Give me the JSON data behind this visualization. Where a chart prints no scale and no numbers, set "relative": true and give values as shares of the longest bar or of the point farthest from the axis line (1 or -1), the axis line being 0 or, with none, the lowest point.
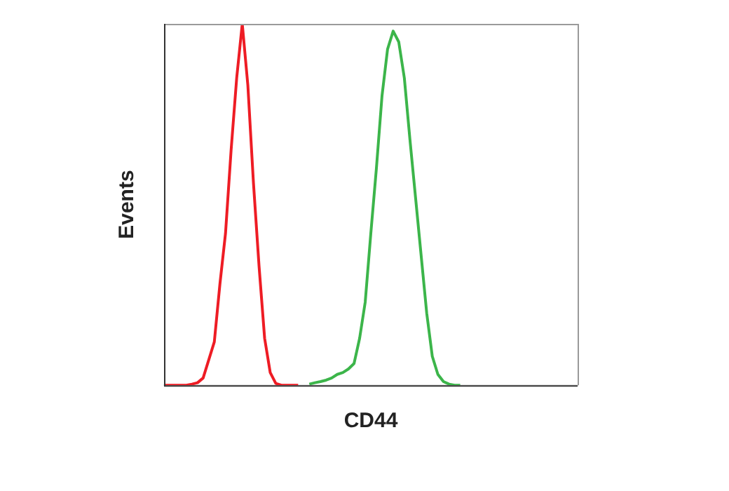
{
  "chart_data": {
    "type": "line",
    "xlabel": "CD44",
    "ylabel": "Events",
    "relative": true,
    "legend": false,
    "marker": "none",
    "categories": [
      null,
      null,
      null,
      null,
      null,
      null,
      null,
      null,
      null,
      null,
      null,
      null,
      null,
      null,
      null,
      null,
      null,
      null,
      null,
      null,
      null,
      null,
      null,
      null,
      null,
      null,
      null,
      null,
      null,
      null,
      null,
      null,
      null,
      null,
      null,
      null,
      null,
      null,
      null,
      null,
      null,
      null,
      null,
      null,
      null,
      null,
      null,
      null,
      null,
      null,
      null,
      null,
      null,
      null,
      null,
      null,
      null,
      null,
      null,
      null,
      null,
      null,
      null,
      null,
      null,
      null,
      null,
      null,
      null,
      null,
      null,
      null,
      null,
      null,
      null
    ],
    "series": [
      {
        "color": "#ee1c24",
        "values": [
          0,
          0,
          0,
          0,
          0,
          0.003,
          0.007,
          0.02,
          0.07,
          0.12,
          0.28,
          0.42,
          0.65,
          0.85,
          1.0,
          0.83,
          0.56,
          0.33,
          0.13,
          0.035,
          0.005,
          0,
          0,
          0,
          0,
          null,
          null,
          null,
          null,
          null,
          null,
          null,
          null,
          null,
          null,
          null,
          null,
          null,
          null,
          null,
          null,
          null,
          null,
          null,
          null,
          null,
          null,
          null,
          null,
          null,
          null,
          null,
          null,
          null,
          null,
          null,
          null,
          null,
          null,
          null,
          null,
          null,
          null,
          null,
          null,
          null,
          null,
          null,
          null,
          null,
          null,
          null,
          null,
          null,
          null
        ]
      },
      {
        "color": "#3cb54a",
        "values": [
          null,
          null,
          null,
          null,
          null,
          null,
          null,
          null,
          null,
          null,
          null,
          null,
          null,
          null,
          null,
          null,
          null,
          null,
          null,
          null,
          null,
          null,
          null,
          null,
          null,
          null,
          0.003,
          0.007,
          0.01,
          0.014,
          0.02,
          0.03,
          0.035,
          0.045,
          0.06,
          0.13,
          0.23,
          0.42,
          0.6,
          0.8,
          0.93,
          0.98,
          0.95,
          0.85,
          0.68,
          0.52,
          0.36,
          0.2,
          0.08,
          0.03,
          0.01,
          0.003,
          0,
          0,
          null,
          null,
          null,
          null,
          null,
          null,
          null,
          null,
          null,
          null,
          null,
          null,
          null,
          null,
          null,
          null,
          null,
          null,
          null,
          null,
          null
        ]
      }
    ]
  }
}
